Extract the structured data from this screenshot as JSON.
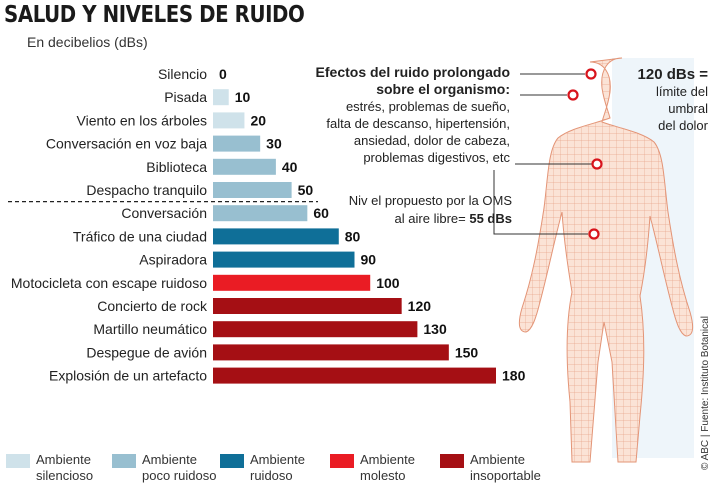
{
  "chart_data": {
    "type": "bar",
    "title": "SALUD Y NIVELES DE RUIDO",
    "subtitle": "En decibelios (dBs)",
    "categories": [
      "Silencio",
      "Pisada",
      "Viento en los árboles",
      "Conversación en voz baja",
      "Biblioteca",
      "Despacho tranquilo",
      "Conversación",
      "Tráfico de una ciudad",
      "Aspiradora",
      "Motocicleta con escape ruidoso",
      "Concierto de rock",
      "Martillo neumático",
      "Despegue de avión",
      "Explosión de un artefacto"
    ],
    "values": [
      0,
      10,
      20,
      30,
      40,
      50,
      60,
      80,
      90,
      100,
      120,
      130,
      150,
      180
    ],
    "classes": [
      0,
      0,
      0,
      1,
      1,
      1,
      1,
      2,
      2,
      3,
      4,
      4,
      4,
      4
    ],
    "xlim": [
      0,
      180
    ],
    "legend": [
      {
        "label1": "Ambiente",
        "label2": "silencioso",
        "color": "#cfe2ea"
      },
      {
        "label1": "Ambiente",
        "label2": "poco ruidoso",
        "color": "#98bfd0"
      },
      {
        "label1": "Ambiente",
        "label2": "ruidoso",
        "color": "#0f6f98"
      },
      {
        "label1": "Ambiente",
        "label2": "molesto",
        "color": "#ea1c24"
      },
      {
        "label1": "Ambiente",
        "label2": "insoportable",
        "color": "#a50f14"
      }
    ],
    "reference_line": {
      "value": 55,
      "label1": "Niv el propuesto por la OMS",
      "label2": "al aire libre=",
      "label_value": "55 dBs"
    }
  },
  "effects": {
    "title1": "Efectos del ruido prolongado",
    "title2": "sobre el  organismo:",
    "lines": [
      "estrés, problemas de sueño,",
      "falta de descanso, hipertensión,",
      "ansiedad, dolor de cabeza,",
      "problemas digestivos, etc"
    ]
  },
  "pain": {
    "value": "120 dBs =",
    "l1": "límite del",
    "l2": "umbral",
    "l3": "del dolor"
  },
  "credit": "© ABC | Fuente: Instituto Botanical"
}
